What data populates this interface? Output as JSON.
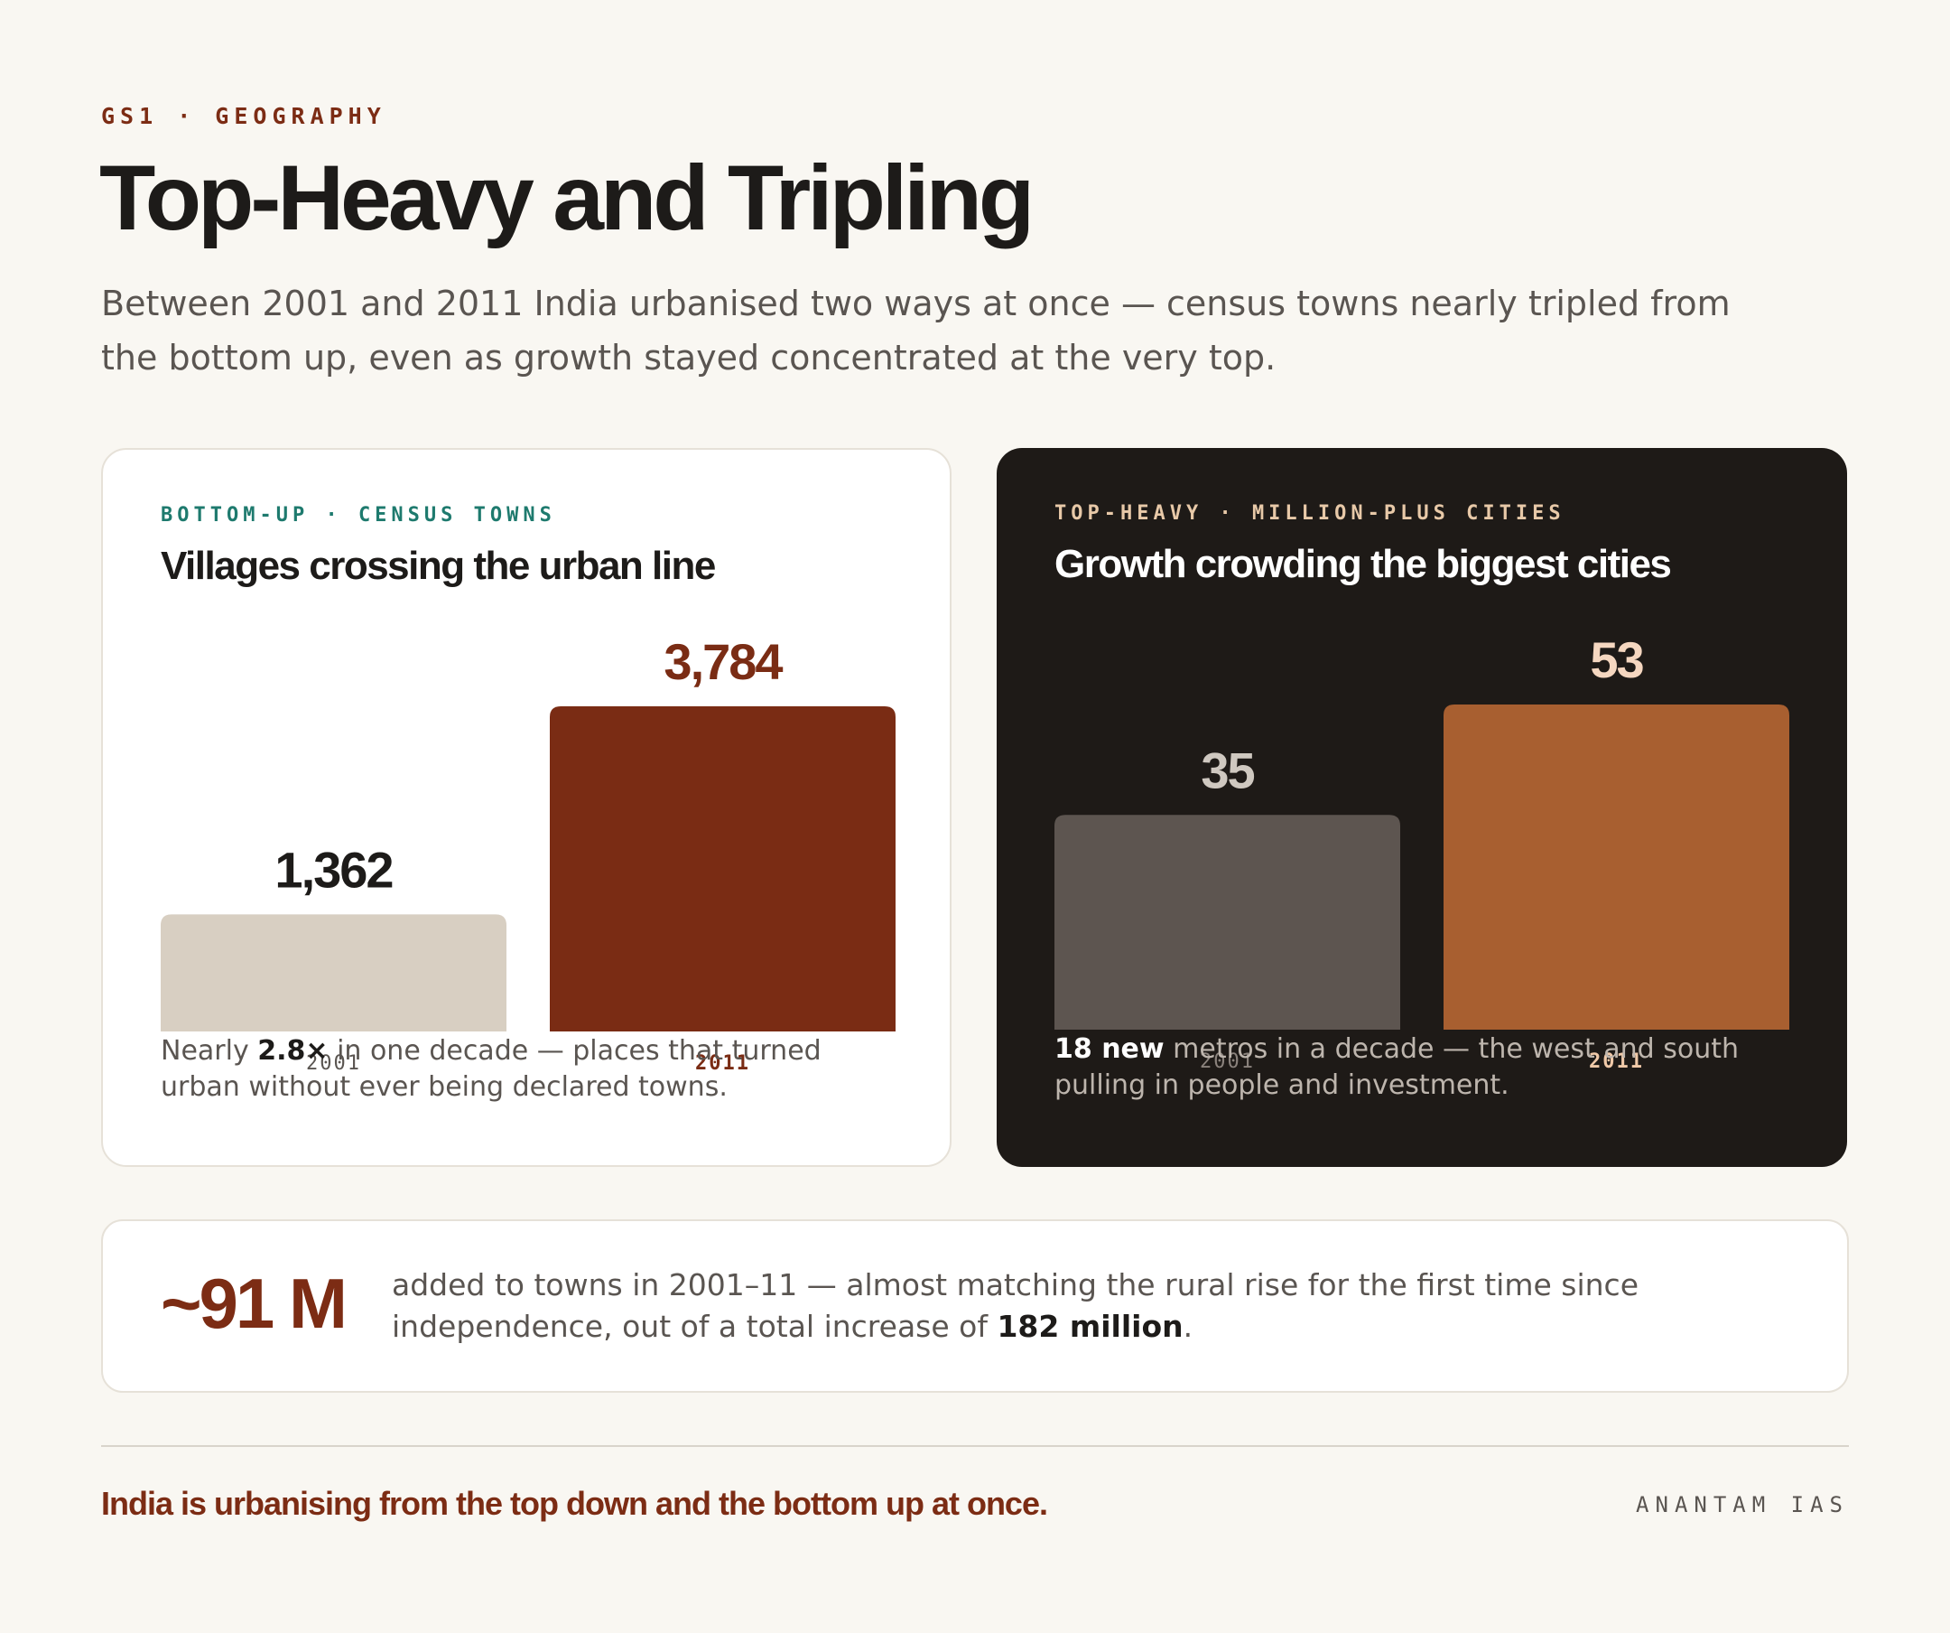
{
  "header": {
    "eyebrow": "GS1 · GEOGRAPHY",
    "title": "Top-Heavy and Tripling",
    "subtitle": "Between 2001 and 2011 India urbanised two ways at once — census towns nearly tripled from the bottom up, even as growth stayed concentrated at the very top."
  },
  "cards": {
    "left": {
      "eyebrow": "BOTTOM-UP · CENSUS TOWNS",
      "title": "Villages crossing the urban line",
      "note_strong": "2.8×",
      "note_pre": "Nearly ",
      "note_post": " in one decade — places that turned urban without ever being declared towns."
    },
    "right": {
      "eyebrow": "TOP-HEAVY · MILLION-PLUS CITIES",
      "title": "Growth crowding the biggest cities",
      "note_strong": "18 new",
      "note_post": " metros in a decade — the west and south pulling in people and investment."
    }
  },
  "chart_data": [
    {
      "type": "bar",
      "title": "Villages crossing the urban line",
      "categories": [
        "2001",
        "2011"
      ],
      "values": [
        1362,
        3784
      ],
      "value_labels": [
        "1,362",
        "3,784"
      ],
      "colors": [
        "#d8cfc2",
        "#7a2c14"
      ],
      "label_colors": [
        "#1d1b19",
        "#7a2c14"
      ],
      "tick_colors": [
        "#5a5551",
        "#7a2c14"
      ]
    },
    {
      "type": "bar",
      "title": "Growth crowding the biggest cities",
      "categories": [
        "2001",
        "2011"
      ],
      "values": [
        35,
        53
      ],
      "value_labels": [
        "35",
        "53"
      ],
      "colors": [
        "#5d5550",
        "#a85f30"
      ],
      "label_colors": [
        "#cfc8c0",
        "#f5d7c0"
      ],
      "tick_colors": [
        "#8a827c",
        "#f0c9a8"
      ]
    }
  ],
  "stat": {
    "big": "~91 M",
    "text_pre": "added to towns in 2001–11 — almost matching the rural rise for the first time since independence, out of a total increase of ",
    "text_strong": "182 million",
    "text_post": "."
  },
  "footer": {
    "tagline": "India is urbanising from the top down and the bottom up at once.",
    "brand": "ANANTAM IAS"
  },
  "colors": {
    "accent": "#7c2c14",
    "background": "#f9f7f2",
    "dark_card": "#1e1a17",
    "teal": "#1e7a6e",
    "peach": "#e8c9a8"
  }
}
